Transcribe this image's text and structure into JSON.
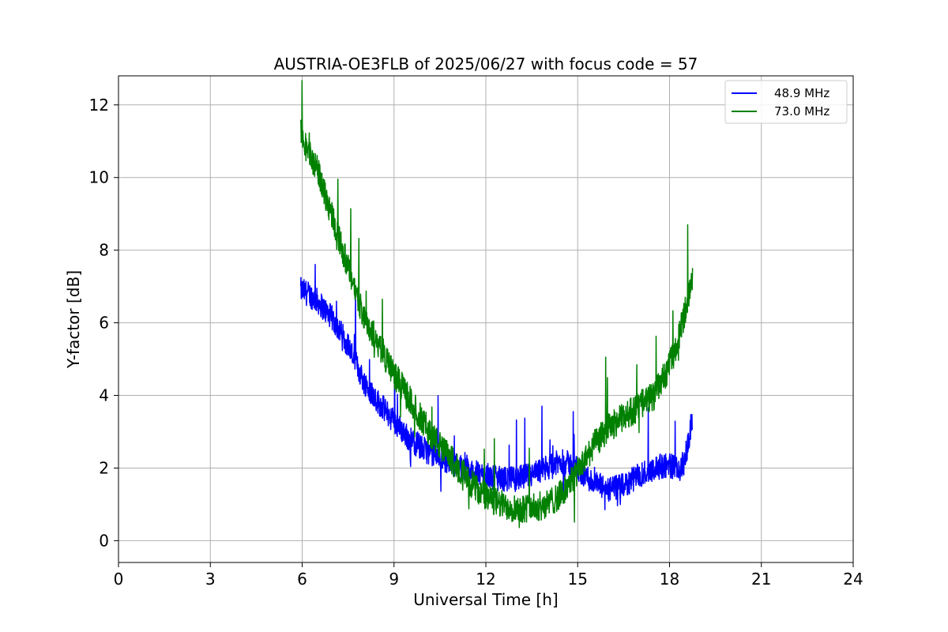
{
  "chart_data": {
    "type": "line",
    "title": "AUSTRIA-OE3FLB of 2025/06/27 with focus code = 57",
    "xlabel": "Universal Time [h]",
    "ylabel": "Y-factor [dB]",
    "xlim": [
      0,
      24
    ],
    "ylim": [
      -0.6,
      12.8
    ],
    "xticks": [
      0,
      3,
      6,
      9,
      12,
      15,
      18,
      21,
      24
    ],
    "yticks": [
      0,
      2,
      4,
      6,
      8,
      10,
      12
    ],
    "grid": true,
    "legend_position": "top-right",
    "series": [
      {
        "name": "48.9 MHz",
        "color": "#0000ff",
        "x": [
          5.95,
          6.2,
          6.5,
          7.0,
          7.5,
          8.0,
          8.5,
          9.0,
          9.5,
          10.0,
          10.5,
          11.0,
          11.5,
          12.0,
          12.5,
          13.0,
          13.5,
          14.0,
          14.5,
          15.0,
          15.5,
          16.0,
          16.5,
          17.0,
          17.5,
          18.0,
          18.3,
          18.5,
          18.75
        ],
        "y": [
          6.9,
          6.8,
          6.6,
          6.1,
          5.4,
          4.4,
          3.8,
          3.3,
          2.8,
          2.5,
          2.3,
          2.1,
          1.9,
          1.8,
          1.7,
          1.7,
          1.8,
          2.0,
          2.2,
          2.0,
          1.6,
          1.4,
          1.5,
          1.8,
          2.0,
          2.1,
          1.9,
          2.2,
          3.4
        ],
        "noise": 0.35
      },
      {
        "name": "73.0 MHz",
        "color": "#008000",
        "x": [
          5.95,
          6.1,
          6.5,
          7.0,
          7.5,
          8.0,
          8.5,
          9.0,
          9.5,
          10.0,
          10.5,
          11.0,
          11.5,
          12.0,
          12.5,
          13.0,
          13.5,
          14.0,
          14.5,
          15.0,
          15.5,
          16.0,
          16.5,
          17.0,
          17.5,
          18.0,
          18.3,
          18.5,
          18.75
        ],
        "y": [
          11.2,
          10.9,
          10.2,
          8.9,
          7.5,
          6.2,
          5.4,
          4.6,
          3.9,
          3.2,
          2.6,
          2.1,
          1.6,
          1.2,
          1.0,
          0.9,
          0.9,
          1.0,
          1.3,
          1.9,
          2.6,
          3.1,
          3.4,
          3.7,
          4.0,
          4.8,
          5.6,
          6.3,
          7.3
        ],
        "noise": 0.4
      }
    ]
  }
}
